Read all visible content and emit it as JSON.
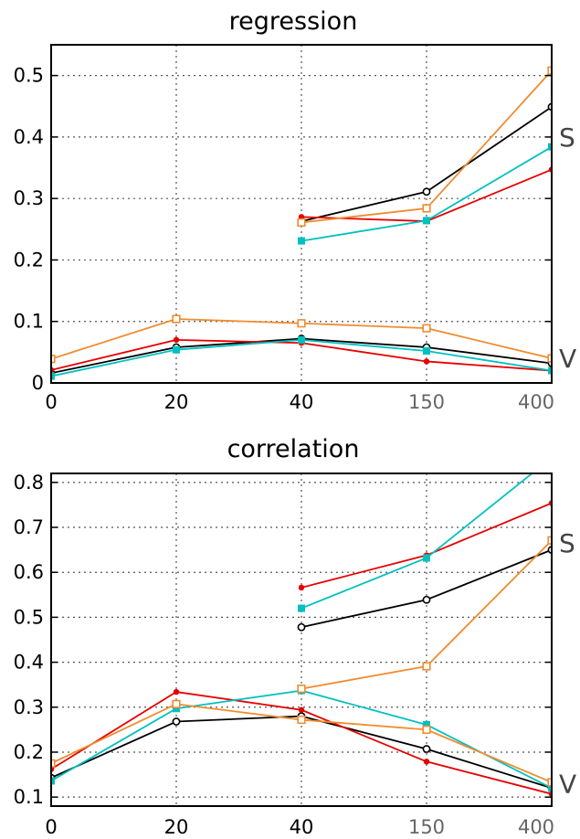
{
  "chart_data": [
    {
      "type": "line",
      "title": "regression",
      "x_ticks": [
        "0",
        "20",
        "40",
        "150",
        "400"
      ],
      "ylim": [
        0,
        0.55
      ],
      "y_ticks": [
        0,
        0.1,
        0.2,
        0.3,
        0.4,
        0.5
      ],
      "grid": true,
      "annotations": [
        {
          "text": "S",
          "at_value": 0.4
        },
        {
          "text": "V",
          "at_value": 0.04
        }
      ],
      "series": [
        {
          "color": "#000000",
          "marker": "open-circle",
          "segments": [
            {
              "x": [
                "40",
                "150",
                "400"
              ],
              "y": [
                0.263,
                0.311,
                0.449
              ]
            },
            {
              "x": [
                "0",
                "20",
                "40",
                "150",
                "400"
              ],
              "y": [
                0.016,
                0.058,
                0.072,
                0.058,
                0.032
              ]
            }
          ]
        },
        {
          "color": "#e60000",
          "marker": "filled-circle",
          "segments": [
            {
              "x": [
                "40",
                "150",
                "400"
              ],
              "y": [
                0.27,
                0.263,
                0.347
              ]
            },
            {
              "x": [
                "0",
                "20",
                "40",
                "150",
                "400"
              ],
              "y": [
                0.021,
                0.07,
                0.065,
                0.035,
                0.02
              ]
            }
          ]
        },
        {
          "color": "#00c0c0",
          "marker": "filled-square",
          "segments": [
            {
              "x": [
                "40",
                "150",
                "400"
              ],
              "y": [
                0.231,
                0.264,
                0.384
              ]
            },
            {
              "x": [
                "0",
                "20",
                "40",
                "150",
                "400"
              ],
              "y": [
                0.011,
                0.054,
                0.07,
                0.052,
                0.02
              ]
            }
          ]
        },
        {
          "color": "#f08c30",
          "marker": "open-square",
          "segments": [
            {
              "x": [
                "40",
                "150",
                "400"
              ],
              "y": [
                0.261,
                0.284,
                0.508
              ]
            },
            {
              "x": [
                "0",
                "20",
                "40",
                "150",
                "400"
              ],
              "y": [
                0.039,
                0.104,
                0.097,
                0.089,
                0.04
              ]
            }
          ]
        }
      ]
    },
    {
      "type": "line",
      "title": "correlation",
      "x_ticks": [
        "0",
        "20",
        "40",
        "150",
        "400"
      ],
      "ylim": [
        0.08,
        0.82
      ],
      "y_ticks": [
        0.1,
        0.2,
        0.3,
        0.4,
        0.5,
        0.6,
        0.7,
        0.8
      ],
      "grid": true,
      "annotations": [
        {
          "text": "S",
          "at_value": 0.665
        },
        {
          "text": "V",
          "at_value": 0.13
        }
      ],
      "series": [
        {
          "color": "#000000",
          "marker": "open-circle",
          "segments": [
            {
              "x": [
                "40",
                "150",
                "400"
              ],
              "y": [
                0.478,
                0.539,
                0.65
              ]
            },
            {
              "x": [
                "0",
                "20",
                "40",
                "150",
                "400"
              ],
              "y": [
                0.143,
                0.268,
                0.28,
                0.207,
                0.12
              ]
            }
          ]
        },
        {
          "color": "#e60000",
          "marker": "filled-circle",
          "segments": [
            {
              "x": [
                "40",
                "150",
                "400"
              ],
              "y": [
                0.566,
                0.638,
                0.754
              ]
            },
            {
              "x": [
                "0",
                "20",
                "40",
                "150",
                "400"
              ],
              "y": [
                0.162,
                0.334,
                0.294,
                0.179,
                0.107
              ]
            }
          ]
        },
        {
          "color": "#00c0c0",
          "marker": "filled-square",
          "segments": [
            {
              "x": [
                "40",
                "150",
                "400"
              ],
              "y": [
                0.52,
                0.632,
                0.855
              ]
            },
            {
              "x": [
                "0",
                "20",
                "40",
                "150",
                "400"
              ],
              "y": [
                0.136,
                0.297,
                0.337,
                0.261,
                0.12
              ]
            }
          ]
        },
        {
          "color": "#f08c30",
          "marker": "open-square",
          "segments": [
            {
              "x": [
                "40",
                "150",
                "400"
              ],
              "y": [
                0.341,
                0.391,
                0.671
              ]
            },
            {
              "x": [
                "0",
                "20",
                "40",
                "150",
                "400"
              ],
              "y": [
                0.175,
                0.307,
                0.272,
                0.25,
                0.133
              ]
            }
          ]
        }
      ]
    }
  ]
}
